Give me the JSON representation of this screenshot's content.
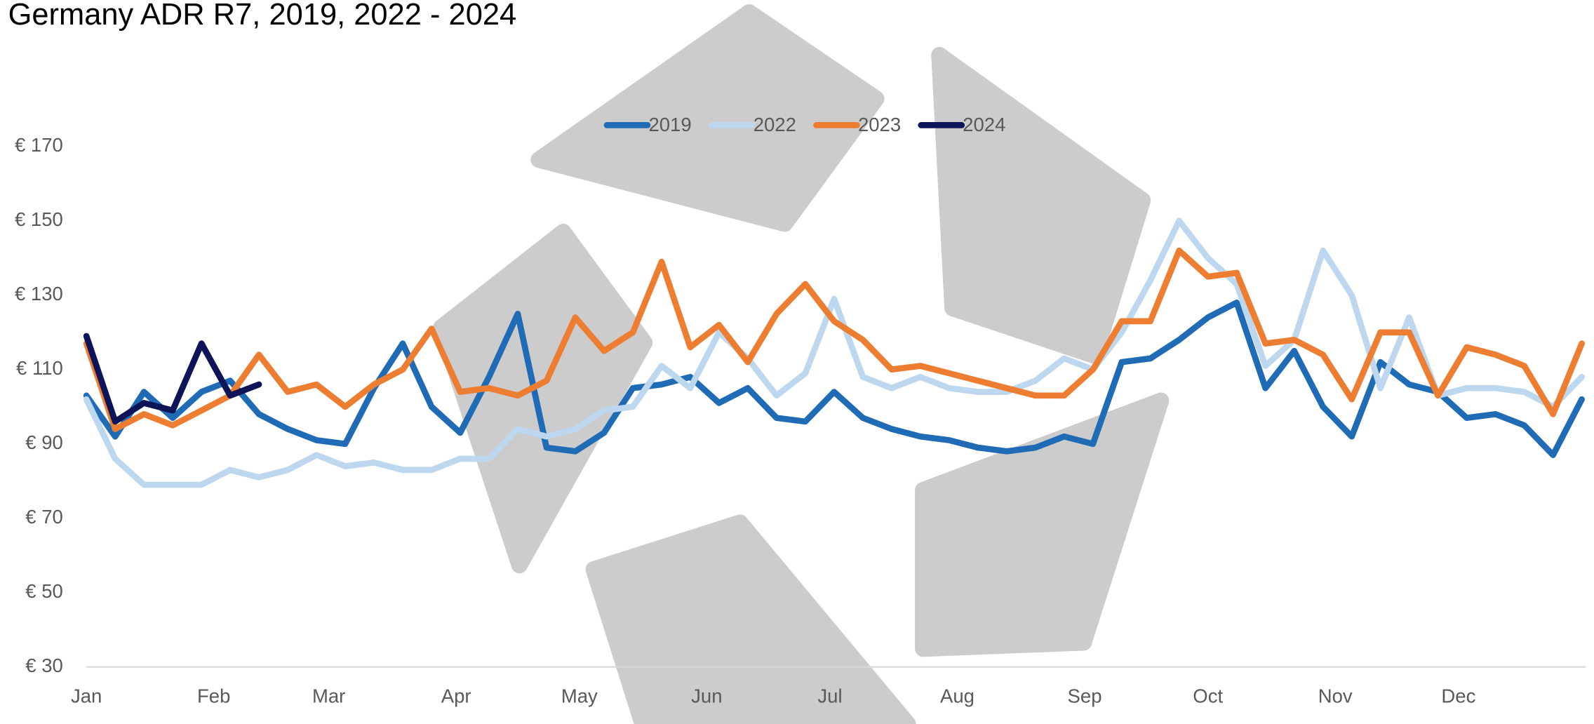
{
  "chart_data": {
    "type": "line",
    "title": "Germany ADR R7, 2019, 2022 - 2024",
    "x": [
      0,
      7,
      14,
      21,
      28,
      35,
      42,
      49,
      56,
      63,
      70,
      77,
      84,
      91,
      98,
      105,
      112,
      119,
      126,
      133,
      140,
      147,
      154,
      161,
      168,
      175,
      182,
      189,
      196,
      203,
      210,
      217,
      224,
      231,
      238,
      245,
      252,
      259,
      266,
      273,
      280,
      287,
      294,
      301,
      308,
      315,
      322,
      329,
      336,
      343,
      350,
      357,
      364
    ],
    "xlim": [
      0,
      365
    ],
    "xticks": [
      {
        "value": 0,
        "label": "Jan"
      },
      {
        "value": 31,
        "label": "Feb"
      },
      {
        "value": 59,
        "label": "Mar"
      },
      {
        "value": 90,
        "label": "Apr"
      },
      {
        "value": 120,
        "label": "May"
      },
      {
        "value": 151,
        "label": "Jun"
      },
      {
        "value": 181,
        "label": "Jul"
      },
      {
        "value": 212,
        "label": "Aug"
      },
      {
        "value": 243,
        "label": "Sep"
      },
      {
        "value": 273,
        "label": "Oct"
      },
      {
        "value": 304,
        "label": "Nov"
      },
      {
        "value": 334,
        "label": "Dec"
      }
    ],
    "ylim": [
      30,
      170
    ],
    "yticks": [
      {
        "value": 30,
        "label": "€ 30"
      },
      {
        "value": 50,
        "label": "€ 50"
      },
      {
        "value": 70,
        "label": "€ 70"
      },
      {
        "value": 90,
        "label": "€ 90"
      },
      {
        "value": 110,
        "label": "€ 110"
      },
      {
        "value": 130,
        "label": "€ 130"
      },
      {
        "value": 150,
        "label": "€ 150"
      },
      {
        "value": 170,
        "label": "€ 170"
      }
    ],
    "grid": false,
    "legend": "top",
    "series": [
      {
        "name": "2019",
        "color": "#1f6bb5",
        "values": [
          103,
          92,
          104,
          97,
          104,
          107,
          98,
          94,
          91,
          90,
          105,
          117,
          100,
          93,
          108,
          125,
          89,
          88,
          93,
          105,
          106,
          108,
          101,
          105,
          97,
          96,
          104,
          97,
          94,
          92,
          91,
          89,
          88,
          89,
          92,
          90,
          112,
          113,
          118,
          124,
          128,
          105,
          115,
          100,
          92,
          112,
          106,
          104,
          97,
          98,
          95,
          87,
          102
        ]
      },
      {
        "name": "2022",
        "color": "#bdd7ee",
        "values": [
          102,
          86,
          79,
          79,
          79,
          83,
          81,
          83,
          87,
          84,
          85,
          83,
          83,
          86,
          86,
          94,
          92,
          94,
          99,
          100,
          111,
          105,
          120,
          113,
          103,
          109,
          129,
          108,
          105,
          108,
          105,
          104,
          104,
          107,
          113,
          110,
          120,
          134,
          150,
          140,
          133,
          111,
          118,
          142,
          130,
          105,
          124,
          103,
          105,
          105,
          104,
          100,
          108
        ]
      },
      {
        "name": "2023",
        "color": "#ed7d31",
        "values": [
          117,
          94,
          98,
          95,
          99,
          103,
          114,
          104,
          106,
          100,
          106,
          110,
          121,
          104,
          105,
          103,
          107,
          124,
          115,
          120,
          139,
          116,
          122,
          112,
          125,
          133,
          123,
          118,
          110,
          111,
          109,
          107,
          105,
          103,
          103,
          110,
          123,
          123,
          142,
          135,
          136,
          117,
          118,
          114,
          102,
          120,
          120,
          103,
          116,
          114,
          111,
          98,
          117
        ]
      },
      {
        "name": "2024",
        "color": "#0d1457",
        "values": [
          119,
          96,
          101,
          99,
          117,
          103,
          106,
          null,
          null,
          null,
          null,
          null,
          null,
          null,
          null,
          null,
          null,
          null,
          null,
          null,
          null,
          null,
          null,
          null,
          null,
          null,
          null,
          null,
          null,
          null,
          null,
          null,
          null,
          null,
          null,
          null,
          null,
          null,
          null,
          null,
          null,
          null,
          null,
          null,
          null,
          null,
          null,
          null,
          null,
          null,
          null,
          null,
          null
        ]
      }
    ]
  }
}
